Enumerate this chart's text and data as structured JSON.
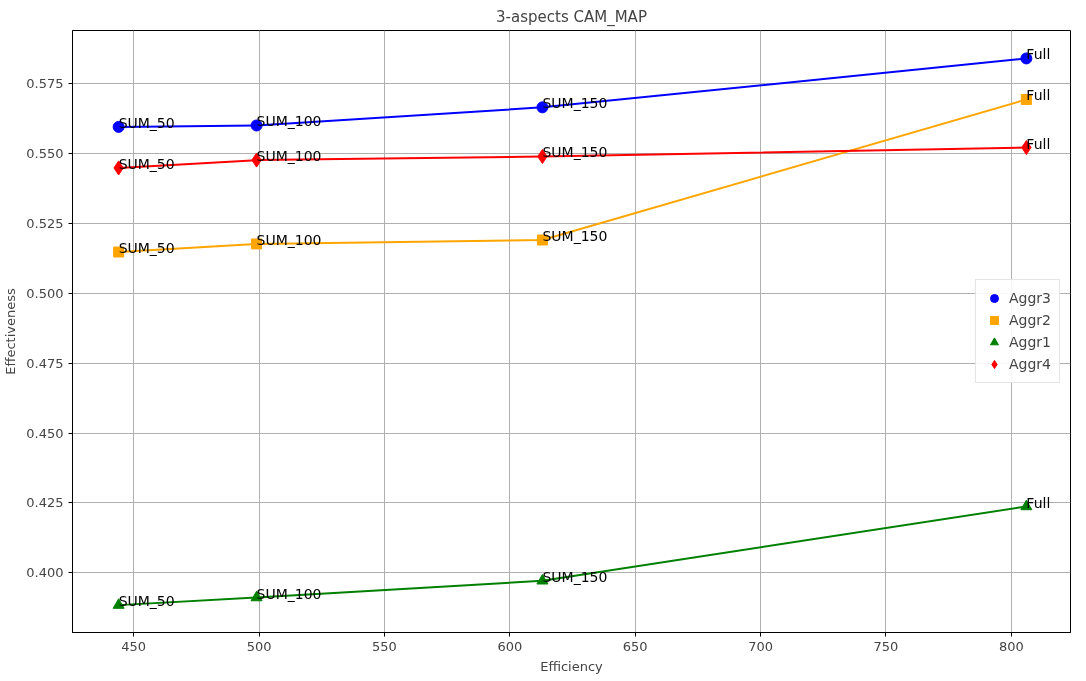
{
  "chart_data": {
    "type": "line",
    "title": "3-aspects CAM_MAP",
    "xlabel": "Efficiency",
    "ylabel": "Effectiveness",
    "x": [
      444,
      499,
      613,
      806
    ],
    "series": [
      {
        "name": "Aggr3",
        "color": "#0000ff",
        "marker": "circle",
        "values": [
          0.5596,
          0.5601,
          0.5666,
          0.5841
        ]
      },
      {
        "name": "Aggr2",
        "color": "#ffa500",
        "marker": "square",
        "values": [
          0.5148,
          0.5177,
          0.5191,
          0.5694
        ]
      },
      {
        "name": "Aggr1",
        "color": "#008000",
        "marker": "triangle",
        "values": [
          0.3884,
          0.3911,
          0.3971,
          0.4237
        ]
      },
      {
        "name": "Aggr4",
        "color": "#ff0000",
        "marker": "diamond",
        "values": [
          0.5449,
          0.5477,
          0.549,
          0.5522
        ]
      }
    ],
    "xlim": [
      425.6,
      823.6
    ],
    "ylim": [
      0.3786,
      0.5941
    ],
    "xticks": [
      450,
      500,
      550,
      600,
      650,
      700,
      750,
      800
    ],
    "yticks": [
      {
        "value": 0.4,
        "label": "0.400"
      },
      0.425,
      {
        "value": 0.45,
        "label": "0.450"
      },
      0.475,
      {
        "value": 0.5,
        "label": "0.500"
      },
      0.525,
      {
        "value": 0.55,
        "label": "0.550"
      },
      0.575
    ],
    "grid": true,
    "legend": "right",
    "line_style": "solid",
    "annotations": [
      {
        "text": "SUM_50",
        "x": 444,
        "y": 0.5596
      },
      {
        "text": "SUM_100",
        "x": 499,
        "y": 0.5601
      },
      {
        "text": "SUM_150",
        "x": 613,
        "y": 0.5666
      },
      {
        "text": "Full",
        "x": 806,
        "y": 0.5841
      },
      {
        "text": "SUM_50",
        "x": 444,
        "y": 0.5148
      },
      {
        "text": "SUM_100",
        "x": 499,
        "y": 0.5177
      },
      {
        "text": "SUM_150",
        "x": 613,
        "y": 0.5191
      },
      {
        "text": "Full",
        "x": 806,
        "y": 0.5694
      },
      {
        "text": "SUM_50",
        "x": 444,
        "y": 0.3884
      },
      {
        "text": "SUM_100",
        "x": 499,
        "y": 0.3911
      },
      {
        "text": "SUM_150",
        "x": 613,
        "y": 0.3971
      },
      {
        "text": "Full",
        "x": 806,
        "y": 0.4237
      },
      {
        "text": "SUM_50",
        "x": 444,
        "y": 0.5449
      },
      {
        "text": "SUM_100",
        "x": 499,
        "y": 0.5477
      },
      {
        "text": "SUM_150",
        "x": 613,
        "y": 0.549
      },
      {
        "text": "Full",
        "x": 806,
        "y": 0.5522
      }
    ]
  }
}
